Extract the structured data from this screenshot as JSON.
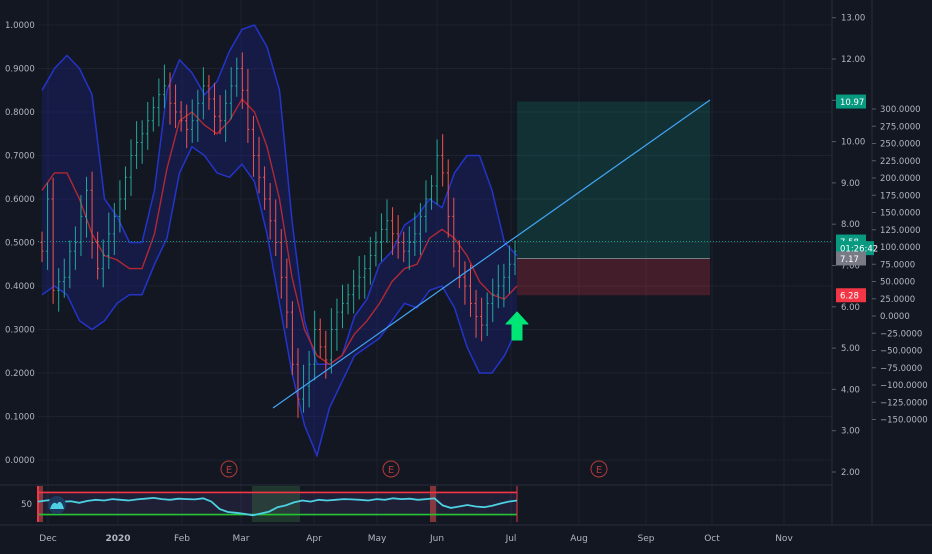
{
  "chart_data": {
    "type": "candlestick",
    "left_axis": {
      "ticks": [
        "1.0000",
        "0.9000",
        "0.8000",
        "0.7000",
        "0.6000",
        "0.5000",
        "0.4000",
        "0.3000",
        "0.2000",
        "0.1000",
        "0.0000"
      ],
      "values": [
        1.0,
        0.9,
        0.8,
        0.7,
        0.6,
        0.5,
        0.4,
        0.3,
        0.2,
        0.1,
        0.0
      ]
    },
    "price_axis": {
      "ticks": [
        "13.00",
        "12.00",
        "11.00",
        "10.00",
        "9.00",
        "8.00",
        "7.00",
        "6.00",
        "5.00",
        "4.00",
        "3.00",
        "2.00"
      ],
      "values": [
        13,
        12,
        11,
        10,
        9,
        8,
        7,
        6,
        5,
        4,
        3,
        2
      ]
    },
    "percent_axis": {
      "ticks": [
        "300.0000",
        "275.0000",
        "250.0000",
        "225.0000",
        "200.0000",
        "175.0000",
        "150.0000",
        "125.0000",
        "100.0000",
        "75.0000",
        "50.0000",
        "25.0000",
        "0.0000",
        "−25.0000",
        "−50.0000",
        "−75.0000",
        "−100.0000",
        "−125.0000",
        "−150.0000"
      ],
      "values": [
        300,
        275,
        250,
        225,
        200,
        175,
        150,
        125,
        100,
        75,
        50,
        25,
        0,
        -25,
        -50,
        -75,
        -100,
        -125,
        -150
      ]
    },
    "time_axis": [
      "Dec",
      "2020",
      "Feb",
      "Mar",
      "Apr",
      "May",
      "Jun",
      "Jul",
      "Aug",
      "Sep",
      "Oct",
      "Nov"
    ],
    "price_labels": [
      {
        "text": "10.97",
        "value": 10.97,
        "color": "#089981"
      },
      {
        "text": "7.58",
        "value": 7.58,
        "color": "#089981"
      },
      {
        "text": "01:26:42",
        "value": 7.42,
        "color": "#089981"
      },
      {
        "text": "7.17",
        "value": 7.17,
        "color": "#787b86"
      },
      {
        "text": "6.28",
        "value": 6.28,
        "color": "#f23645"
      }
    ],
    "earnings_markers": [
      "E",
      "E",
      "E"
    ],
    "oscillator": {
      "level_label": "50",
      "upper": 80,
      "lower": 20
    },
    "position": {
      "entry": 7.17,
      "target": 10.97,
      "stop": 6.28
    },
    "bands": {
      "upper": [
        0.85,
        0.9,
        0.93,
        0.9,
        0.84,
        0.6,
        0.56,
        0.5,
        0.5,
        0.62,
        0.85,
        0.92,
        0.89,
        0.84,
        0.87,
        0.94,
        0.99,
        1.0,
        0.95,
        0.85,
        0.55,
        0.32,
        0.22,
        0.22,
        0.24,
        0.33,
        0.37,
        0.45,
        0.48,
        0.54,
        0.56,
        0.6,
        0.58,
        0.66,
        0.7,
        0.7,
        0.62,
        0.5,
        0.47
      ],
      "basis": [
        0.62,
        0.66,
        0.66,
        0.6,
        0.52,
        0.47,
        0.46,
        0.44,
        0.44,
        0.52,
        0.67,
        0.78,
        0.8,
        0.77,
        0.75,
        0.78,
        0.83,
        0.8,
        0.72,
        0.6,
        0.42,
        0.3,
        0.24,
        0.22,
        0.24,
        0.29,
        0.32,
        0.36,
        0.41,
        0.44,
        0.45,
        0.51,
        0.53,
        0.51,
        0.47,
        0.41,
        0.38,
        0.37,
        0.4
      ],
      "lower": [
        0.38,
        0.4,
        0.38,
        0.32,
        0.3,
        0.32,
        0.36,
        0.38,
        0.38,
        0.45,
        0.51,
        0.66,
        0.72,
        0.7,
        0.66,
        0.65,
        0.68,
        0.64,
        0.52,
        0.36,
        0.2,
        0.08,
        0.01,
        0.12,
        0.18,
        0.24,
        0.26,
        0.28,
        0.32,
        0.36,
        0.35,
        0.39,
        0.4,
        0.35,
        0.26,
        0.2,
        0.2,
        0.24,
        0.3
      ]
    },
    "closes": [
      0.48,
      0.6,
      0.39,
      0.41,
      0.42,
      0.48,
      0.5,
      0.56,
      0.62,
      0.5,
      0.44,
      0.47,
      0.52,
      0.56,
      0.6,
      0.65,
      0.7,
      0.73,
      0.75,
      0.78,
      0.81,
      0.84,
      0.86,
      0.82,
      0.8,
      0.78,
      0.76,
      0.78,
      0.82,
      0.86,
      0.83,
      0.79,
      0.78,
      0.82,
      0.86,
      0.9,
      0.85,
      0.76,
      0.7,
      0.65,
      0.6,
      0.55,
      0.5,
      0.42,
      0.34,
      0.22,
      0.14,
      0.17,
      0.22,
      0.3,
      0.26,
      0.23,
      0.3,
      0.34,
      0.36,
      0.38,
      0.4,
      0.42,
      0.44,
      0.47,
      0.5,
      0.53,
      0.55,
      0.52,
      0.5,
      0.48,
      0.5,
      0.52,
      0.56,
      0.6,
      0.63,
      0.7,
      0.66,
      0.56,
      0.48,
      0.42,
      0.4,
      0.36,
      0.33,
      0.31,
      0.36,
      0.38,
      0.4,
      0.42,
      0.45,
      0.48
    ],
    "oscillator_values": [
      55,
      58,
      60,
      55,
      56,
      52,
      57,
      60,
      58,
      62,
      60,
      58,
      61,
      63,
      65,
      62,
      60,
      63,
      62,
      61,
      64,
      55,
      35,
      27,
      25,
      22,
      18,
      23,
      28,
      40,
      45,
      53,
      58,
      55,
      60,
      58,
      60,
      62,
      61,
      60,
      58,
      62,
      60,
      64,
      62,
      63,
      60,
      62,
      64,
      45,
      38,
      42,
      46,
      42,
      40,
      44,
      50,
      55,
      58
    ]
  }
}
